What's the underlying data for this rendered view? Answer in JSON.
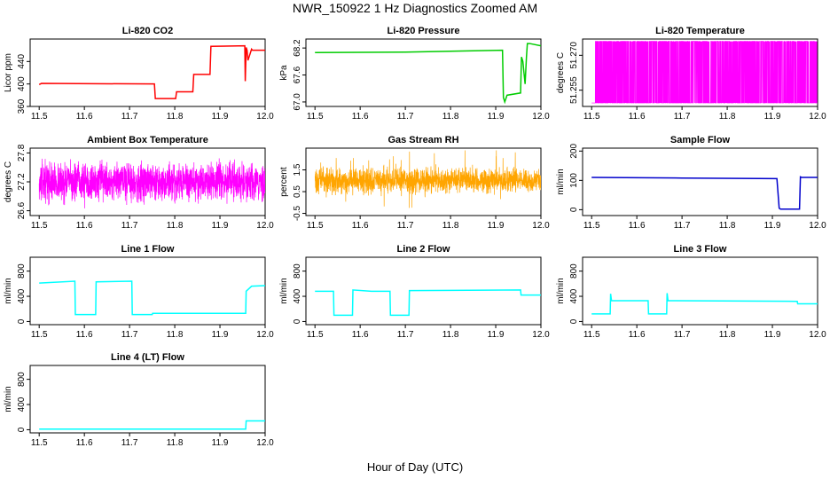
{
  "figure": {
    "title": "NWR_150922  1 Hz Diagnostics Zoomed AM",
    "xlabel": "Hour of Day (UTC)"
  },
  "chart_data": [
    {
      "type": "line",
      "title": "Li-820 CO2",
      "ylabel": "Licor ppm",
      "color": "#ff0000",
      "xlim": [
        11.48,
        12.0
      ],
      "ylim": [
        360,
        480
      ],
      "yticks": [
        360,
        400,
        440
      ],
      "xticks": [
        11.5,
        11.6,
        11.7,
        11.8,
        11.9,
        12.0
      ],
      "series": [
        {
          "x": [
            11.5,
            11.505,
            11.755,
            11.757,
            11.802,
            11.804,
            11.84,
            11.842,
            11.878,
            11.88,
            11.955,
            11.956,
            11.958,
            11.96,
            11.962,
            11.97,
            11.972,
            12.0
          ],
          "y": [
            399,
            401,
            400,
            374,
            374,
            386,
            386,
            417,
            417,
            467,
            468,
            405,
            465,
            460,
            442,
            462,
            460,
            460
          ]
        }
      ]
    },
    {
      "type": "line",
      "title": "Li-820 Pressure",
      "ylabel": "kPa",
      "color": "#00cc00",
      "xlim": [
        11.48,
        12.0
      ],
      "ylim": [
        66.9,
        68.4
      ],
      "yticks": [
        67.0,
        67.6,
        68.2
      ],
      "xticks": [
        11.5,
        11.6,
        11.7,
        11.8,
        11.9,
        12.0
      ],
      "series": [
        {
          "x": [
            11.5,
            11.7,
            11.915,
            11.917,
            11.92,
            11.925,
            11.955,
            11.957,
            11.96,
            11.965,
            11.968,
            11.97,
            11.975,
            12.0
          ],
          "y": [
            68.1,
            68.11,
            68.15,
            67.1,
            67.0,
            67.15,
            67.2,
            68.0,
            67.9,
            67.4,
            68.0,
            68.3,
            68.3,
            68.25
          ]
        }
      ]
    },
    {
      "type": "line",
      "title": "Li-820 Temperature",
      "ylabel": "degrees C",
      "color": "#ff00ff",
      "xlim": [
        11.48,
        12.0
      ],
      "ylim": [
        51.248,
        51.277
      ],
      "yticks": [
        51.255,
        51.27
      ],
      "xticks": [
        11.5,
        11.6,
        11.7,
        11.8,
        11.9,
        12.0
      ],
      "series": [
        {
          "x": [],
          "y": []
        }
      ]
    },
    {
      "type": "line",
      "title": "Ambient Box Temperature",
      "ylabel": "degrees C",
      "color": "#ff00ff",
      "xlim": [
        11.48,
        12.0
      ],
      "ylim": [
        26.5,
        27.9
      ],
      "yticks": [
        26.6,
        27.2,
        27.8
      ],
      "xticks": [
        11.5,
        11.6,
        11.7,
        11.8,
        11.9,
        12.0
      ],
      "series": [
        {
          "x": [],
          "y": []
        }
      ]
    },
    {
      "type": "line",
      "title": "Gas Stream RH",
      "ylabel": "percent",
      "color": "#ffa500",
      "xlim": [
        11.48,
        12.0
      ],
      "ylim": [
        -0.6,
        2.5
      ],
      "yticks": [
        -0.5,
        0.5,
        1.5
      ],
      "xticks": [
        11.5,
        11.6,
        11.7,
        11.8,
        11.9,
        12.0
      ],
      "series": [
        {
          "x": [],
          "y": []
        }
      ]
    },
    {
      "type": "line",
      "title": "Sample Flow",
      "ylabel": "ml/min",
      "color": "#0000cc",
      "xlim": [
        11.48,
        12.0
      ],
      "ylim": [
        -20,
        210
      ],
      "yticks": [
        0,
        100,
        200
      ],
      "xticks": [
        11.5,
        11.6,
        11.7,
        11.8,
        11.9,
        12.0
      ],
      "series": [
        {
          "x": [
            11.5,
            11.7,
            11.91,
            11.915,
            11.918,
            11.96,
            11.962,
            11.965,
            12.0
          ],
          "y": [
            110,
            108,
            106,
            5,
            2,
            2,
            112,
            110,
            110
          ]
        }
      ]
    },
    {
      "type": "line",
      "title": "Line 1 Flow",
      "ylabel": "ml/min",
      "color": "#00ffff",
      "xlim": [
        11.48,
        12.0
      ],
      "ylim": [
        -50,
        1020
      ],
      "yticks": [
        0,
        400,
        800
      ],
      "xticks": [
        11.5,
        11.6,
        11.7,
        11.8,
        11.9,
        12.0
      ],
      "series": [
        {
          "x": [
            11.5,
            11.579,
            11.58,
            11.625,
            11.626,
            11.705,
            11.706,
            11.75,
            11.751,
            11.957,
            11.958,
            11.97,
            12.0
          ],
          "y": [
            610,
            640,
            110,
            110,
            630,
            640,
            110,
            110,
            130,
            130,
            480,
            560,
            570
          ]
        }
      ]
    },
    {
      "type": "line",
      "title": "Line 2 Flow",
      "ylabel": "ml/min",
      "color": "#00ffff",
      "xlim": [
        11.48,
        12.0
      ],
      "ylim": [
        -50,
        1020
      ],
      "yticks": [
        0,
        400,
        800
      ],
      "xticks": [
        11.5,
        11.6,
        11.7,
        11.8,
        11.9,
        12.0
      ],
      "series": [
        {
          "x": [
            11.5,
            11.541,
            11.542,
            11.583,
            11.584,
            11.625,
            11.666,
            11.667,
            11.708,
            11.709,
            11.955,
            11.956,
            12.0
          ],
          "y": [
            480,
            480,
            100,
            100,
            500,
            480,
            480,
            100,
            100,
            490,
            500,
            420,
            420
          ]
        }
      ]
    },
    {
      "type": "line",
      "title": "Line 3 Flow",
      "ylabel": "ml/min",
      "color": "#00ffff",
      "xlim": [
        11.48,
        12.0
      ],
      "ylim": [
        -50,
        1020
      ],
      "yticks": [
        0,
        400,
        800
      ],
      "xticks": [
        11.5,
        11.6,
        11.7,
        11.8,
        11.9,
        12.0
      ],
      "series": [
        {
          "x": [
            11.5,
            11.541,
            11.542,
            11.544,
            11.625,
            11.626,
            11.666,
            11.667,
            11.669,
            11.955,
            11.956,
            12.0
          ],
          "y": [
            120,
            120,
            440,
            330,
            330,
            120,
            120,
            450,
            330,
            320,
            280,
            280
          ]
        }
      ]
    },
    {
      "type": "line",
      "title": "Line 4 (LT) Flow",
      "ylabel": "ml/min",
      "color": "#00ffff",
      "xlim": [
        11.48,
        12.0
      ],
      "ylim": [
        -50,
        1020
      ],
      "yticks": [
        0,
        400,
        800
      ],
      "xticks": [
        11.5,
        11.6,
        11.7,
        11.8,
        11.9,
        12.0
      ],
      "series": [
        {
          "x": [
            11.5,
            11.957,
            11.958,
            12.0
          ],
          "y": [
            10,
            10,
            140,
            140
          ]
        }
      ]
    }
  ]
}
